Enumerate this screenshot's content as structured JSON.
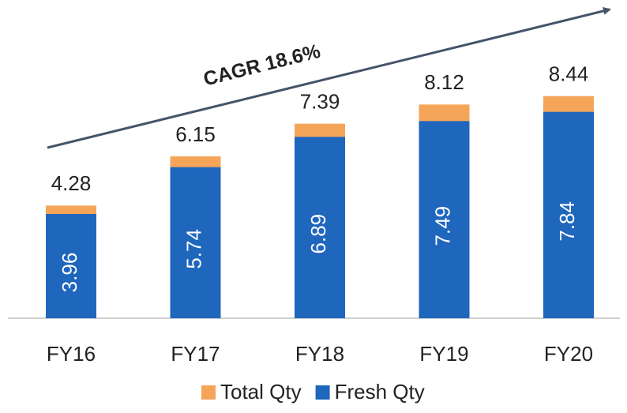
{
  "chart_data": {
    "type": "bar",
    "annotation": "CAGR 18.6%",
    "categories": [
      "FY16",
      "FY17",
      "FY18",
      "FY19",
      "FY20"
    ],
    "series": [
      {
        "name": "Total Qty",
        "color": "#f5a55a",
        "values": [
          4.28,
          6.15,
          7.39,
          8.12,
          8.44
        ]
      },
      {
        "name": "Fresh Qty",
        "color": "#1f66bd",
        "values": [
          3.96,
          5.74,
          6.89,
          7.49,
          7.84
        ]
      }
    ],
    "ylim": [
      0,
      12
    ],
    "grid": false
  }
}
